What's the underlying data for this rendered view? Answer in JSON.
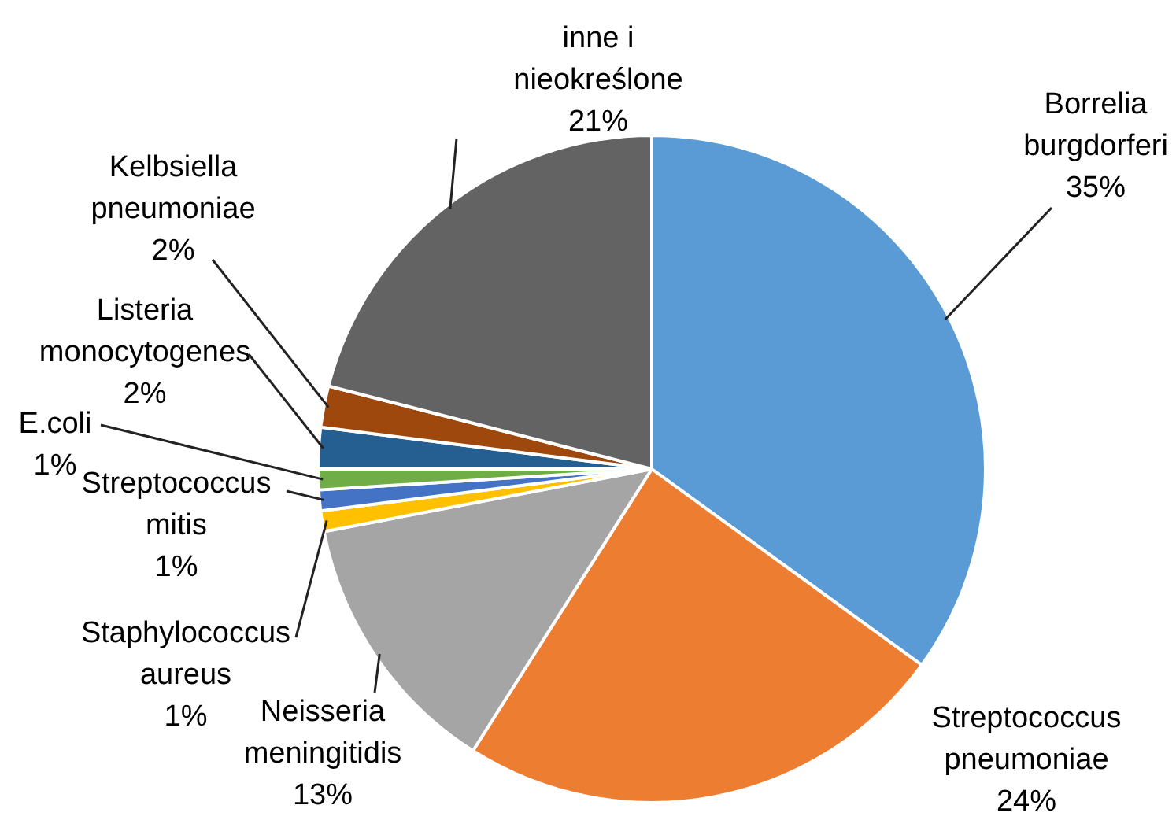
{
  "chart_data": {
    "type": "pie",
    "categories": [
      "Borrelia burgdorferi",
      "Streptococcus pneumoniae",
      "Neisseria meningitidis",
      "Staphylococcus aureus",
      "Streptococcus mitis",
      "E.coli",
      "Listeria monocytogenes",
      "Kelbsiella pneumoniae",
      "inne i nieokreślone"
    ],
    "values": [
      35,
      24,
      13,
      1,
      1,
      1,
      2,
      2,
      21
    ],
    "colors": [
      "#5b9bd5",
      "#ed7d31",
      "#a5a5a5",
      "#ffc000",
      "#4472c4",
      "#70ad47",
      "#255e91",
      "#9e480e",
      "#636363"
    ],
    "value_labels": [
      "35%",
      "24%",
      "13%",
      "1%",
      "1%",
      "1%",
      "2%",
      "2%",
      "21%"
    ],
    "legend": false
  }
}
